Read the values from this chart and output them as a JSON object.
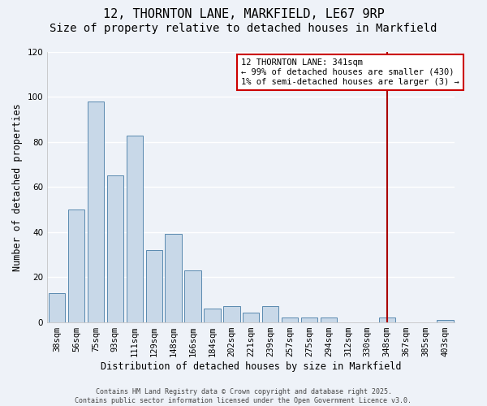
{
  "title_line1": "12, THORNTON LANE, MARKFIELD, LE67 9RP",
  "title_line2": "Size of property relative to detached houses in Markfield",
  "xlabel": "Distribution of detached houses by size in Markfield",
  "ylabel": "Number of detached properties",
  "categories": [
    "38sqm",
    "56sqm",
    "75sqm",
    "93sqm",
    "111sqm",
    "129sqm",
    "148sqm",
    "166sqm",
    "184sqm",
    "202sqm",
    "221sqm",
    "239sqm",
    "257sqm",
    "275sqm",
    "294sqm",
    "312sqm",
    "330sqm",
    "348sqm",
    "367sqm",
    "385sqm",
    "403sqm"
  ],
  "values": [
    13,
    50,
    98,
    65,
    83,
    32,
    39,
    23,
    6,
    7,
    4,
    7,
    2,
    2,
    2,
    0,
    0,
    2,
    0,
    0,
    1
  ],
  "bar_color": "#c8d8e8",
  "bar_edge_color": "#5a8ab0",
  "background_color": "#eef2f8",
  "grid_color": "#ffffff",
  "vline_x_index": 17,
  "vline_color": "#aa0000",
  "annotation_text": "12 THORNTON LANE: 341sqm\n← 99% of detached houses are smaller (430)\n1% of semi-detached houses are larger (3) →",
  "annotation_box_color": "#ffffff",
  "annotation_box_edge_color": "#cc0000",
  "ylim": [
    0,
    120
  ],
  "yticks": [
    0,
    20,
    40,
    60,
    80,
    100,
    120
  ],
  "footer_text": "Contains HM Land Registry data © Crown copyright and database right 2025.\nContains public sector information licensed under the Open Government Licence v3.0.",
  "title_fontsize": 11,
  "subtitle_fontsize": 10,
  "axis_label_fontsize": 8.5,
  "tick_fontsize": 7.5,
  "annotation_fontsize": 7.5,
  "footer_fontsize": 6
}
